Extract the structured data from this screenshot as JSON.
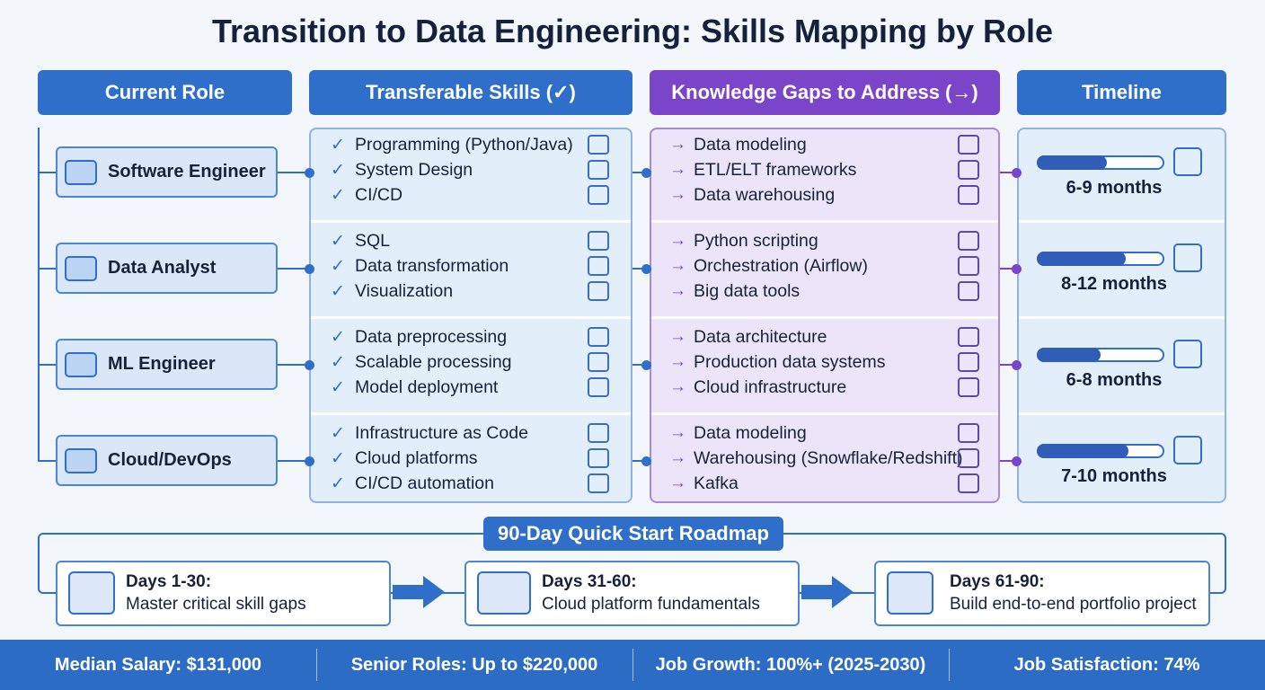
{
  "title": "Transition to Data Engineering: Skills Mapping by Role",
  "headers": {
    "role": "Current Role",
    "skills": "Transferable Skills (✓)",
    "gaps": "Knowledge Gaps to Address (→)",
    "timeline": "Timeline"
  },
  "roles": [
    {
      "name": "Software Engineer",
      "skills": [
        "Programming (Python/Java)",
        "System Design",
        "CI/CD"
      ],
      "gaps": [
        "Data modeling",
        "ETL/ELT frameworks",
        "Data warehousing"
      ],
      "timeline": "6-9 months"
    },
    {
      "name": "Data Analyst",
      "skills": [
        "SQL",
        "Data transformation",
        "Visualization"
      ],
      "gaps": [
        "Python scripting",
        "Orchestration (Airflow)",
        "Big data tools"
      ],
      "timeline": "8-12 months"
    },
    {
      "name": "ML Engineer",
      "skills": [
        "Data preprocessing",
        "Scalable processing",
        "Model deployment"
      ],
      "gaps": [
        "Data architecture",
        "Production data systems",
        "Cloud infrastructure"
      ],
      "timeline": "6-8 months"
    },
    {
      "name": "Cloud/DevOps",
      "skills": [
        "Infrastructure as Code",
        "Cloud platforms",
        "CI/CD automation"
      ],
      "gaps": [
        "Data modeling",
        "Warehousing (Snowflake/Redshift)",
        "Kafka"
      ],
      "timeline": "7-10 months"
    }
  ],
  "roadmap": {
    "title": "90-Day Quick Start Roadmap",
    "steps": [
      {
        "period": "Days 1-30:",
        "goal": "Master critical skill gaps"
      },
      {
        "period": "Days 31-60:",
        "goal": "Cloud platform fundamentals"
      },
      {
        "period": "Days 61-90:",
        "goal": "Build end-to-end portfolio project"
      }
    ]
  },
  "stats": [
    "Median Salary: $131,000",
    "Senior Roles: Up to $220,000",
    "Job Growth: 100%+ (2025-2030)",
    "Job Satisfaction: 74%"
  ]
}
